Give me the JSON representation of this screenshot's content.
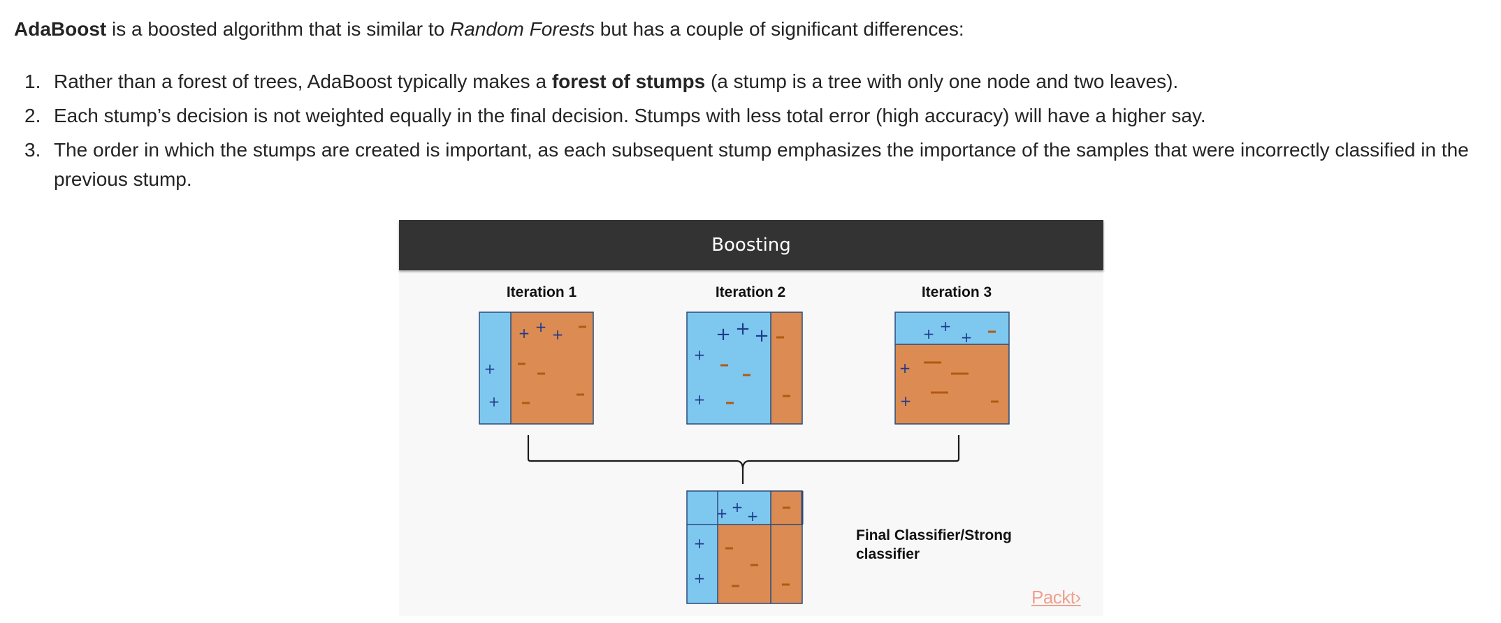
{
  "intro": {
    "strong": "AdaBoost",
    "part1": " is a boosted algorithm that is similar to ",
    "em": "Random Forests",
    "part2": " but has a couple of significant differences:"
  },
  "list": [
    {
      "num": "1.",
      "before": "Rather than a forest of trees, AdaBoost typically makes a ",
      "strong": "forest of stumps",
      "after": " (a stump is a tree with only one node and two leaves)."
    },
    {
      "num": "2.",
      "text": "Each stump’s decision is not weighted equally in the final decision. Stumps with less total error (high accuracy) will have a higher say."
    },
    {
      "num": "3.",
      "text": "The order in which the stumps are created is important, as each subsequent stump emphasizes the importance of the samples that were incorrectly classified in the previous stump."
    }
  ],
  "figure": {
    "banner_title": "Boosting",
    "iterations": [
      "Iteration 1",
      "Iteration 2",
      "Iteration 3"
    ],
    "final_label_line1": "Final Classifier/Strong",
    "final_label_line2": "classifier",
    "brand": "Packt›",
    "colors": {
      "blue_region": "#7ec8f0",
      "orange_region": "#dc8b52",
      "plus_marker": "#1f3a8a",
      "minus_marker": "#b05a12",
      "box_border": "#2a4a7a"
    }
  }
}
